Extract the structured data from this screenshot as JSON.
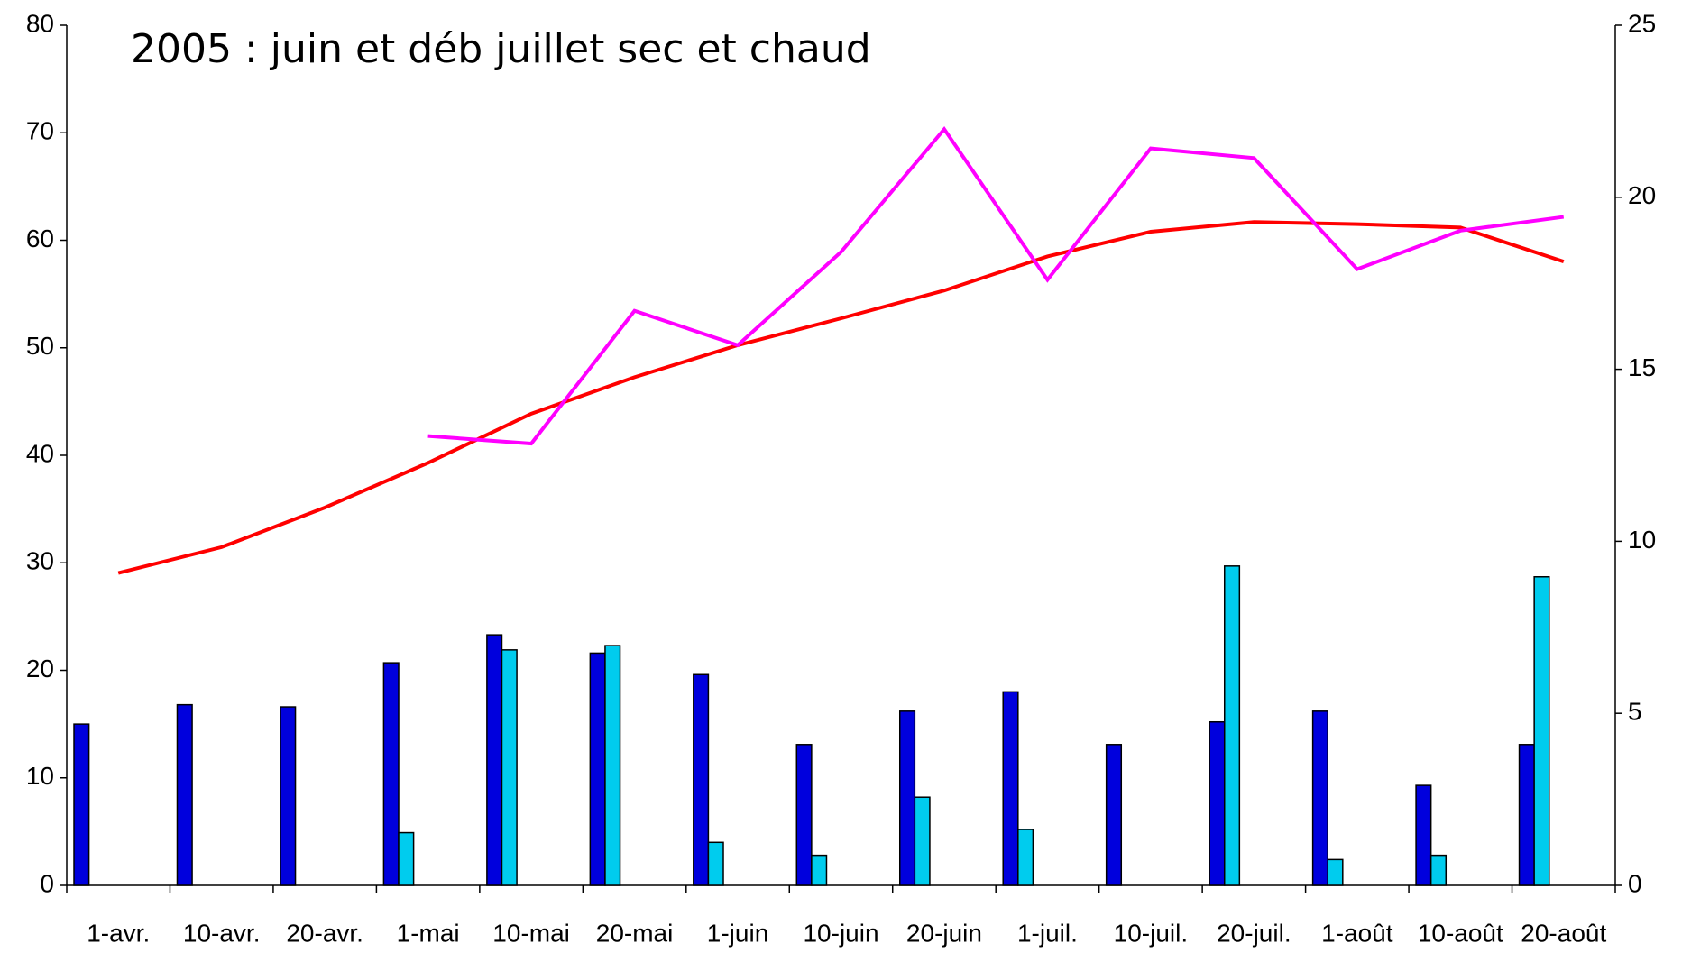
{
  "chart_data": {
    "type": "bar-line",
    "title": "2005 : juin et déb juillet sec et chaud",
    "categories": [
      "1-avr.",
      "10-avr.",
      "20-avr.",
      "1-mai",
      "10-mai",
      "20-mai",
      "1-juin",
      "10-juin",
      "20-juin",
      "1-juil.",
      "10-juil.",
      "20-juil.",
      "1-août",
      "10-août",
      "20-août"
    ],
    "series": [
      {
        "type": "bar",
        "color": "#0000dd",
        "values": [
          15.0,
          16.8,
          16.6,
          20.7,
          23.3,
          21.6,
          19.6,
          13.1,
          16.2,
          18.0,
          13.1,
          15.2,
          16.2,
          9.3,
          13.1
        ]
      },
      {
        "type": "bar",
        "color": "#00ccee",
        "values": [
          null,
          null,
          null,
          4.9,
          21.9,
          22.3,
          4.0,
          2.8,
          8.2,
          5.2,
          null,
          29.7,
          2.4,
          2.8,
          28.7
        ]
      },
      {
        "type": "line",
        "axis": "y2",
        "color": "#ff0000",
        "values": [
          9.08,
          9.83,
          10.98,
          12.28,
          13.71,
          14.77,
          15.7,
          16.48,
          17.29,
          18.28,
          19.0,
          19.28,
          19.22,
          19.12,
          18.13
        ]
      },
      {
        "type": "line",
        "axis": "y2",
        "color": "#ff00ff",
        "values": [
          null,
          null,
          null,
          13.06,
          12.84,
          16.7,
          15.7,
          18.41,
          21.98,
          17.6,
          21.42,
          21.14,
          17.91,
          19.03,
          19.43
        ]
      }
    ],
    "ylim": [
      0,
      80
    ],
    "yticks": [
      0,
      10,
      20,
      30,
      40,
      50,
      60,
      70,
      80
    ],
    "y2lim": [
      0,
      25
    ],
    "y2ticks": [
      0,
      5,
      10,
      15,
      20,
      25
    ]
  }
}
